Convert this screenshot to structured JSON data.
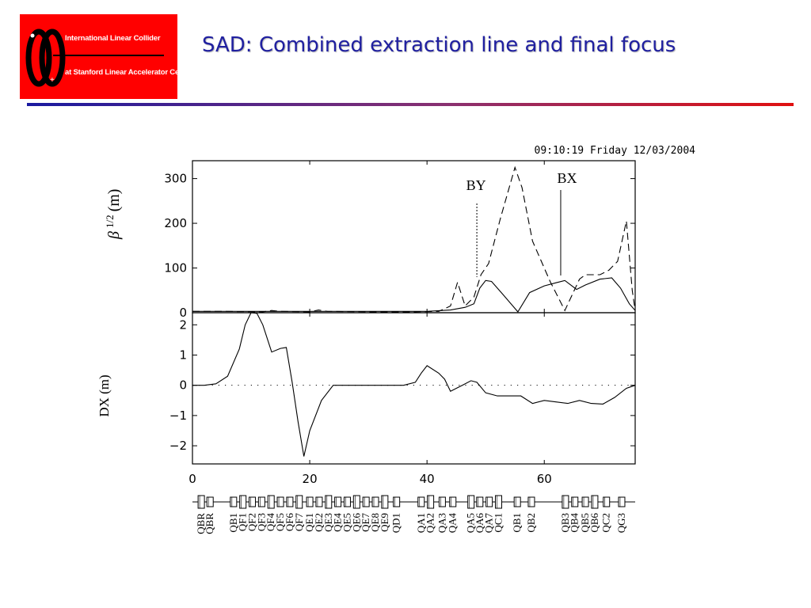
{
  "logo": {
    "line1": "International Linear Collider",
    "line2": "at Stanford Linear Accelerator Center",
    "accent": "#ff0000"
  },
  "slide": {
    "title": "SAD: Combined extraction line and final focus",
    "title_color": "#2020a0"
  },
  "chart_data": {
    "type": "line",
    "timestamp": "09:10:19 Friday 12/03/2004",
    "x": {
      "ticks": [
        0,
        20,
        40,
        60
      ],
      "range": [
        0,
        75.5
      ]
    },
    "panels": [
      {
        "id": "beta",
        "ylabel": "β 1/2 (m)",
        "ylabel_symbol": "β",
        "ylabel_sup": "1/2",
        "ylabel_unit": "(m)",
        "ylim": [
          0,
          340
        ],
        "yticks": [
          0,
          100,
          200,
          300
        ],
        "annotations": [
          {
            "label": "BY",
            "x": 48.5
          },
          {
            "label": "BX",
            "x": 62.8
          }
        ],
        "series": [
          {
            "name": "BY",
            "dash": "dashed",
            "points": [
              [
                0,
                3
              ],
              [
                5,
                3
              ],
              [
                12,
                2
              ],
              [
                13.5,
                5
              ],
              [
                15,
                3
              ],
              [
                20,
                2
              ],
              [
                21.5,
                6
              ],
              [
                23,
                3
              ],
              [
                30,
                2
              ],
              [
                38,
                2
              ],
              [
                42,
                3
              ],
              [
                44,
                15
              ],
              [
                45.2,
                68
              ],
              [
                46.5,
                15
              ],
              [
                48,
                35
              ],
              [
                49.2,
                85
              ],
              [
                50.5,
                110
              ],
              [
                52.5,
                210
              ],
              [
                55,
                325
              ],
              [
                56.2,
                280
              ],
              [
                58,
                160
              ],
              [
                61,
                70
              ],
              [
                63.5,
                5
              ],
              [
                66,
                75
              ],
              [
                67,
                85
              ],
              [
                69.5,
                85
              ],
              [
                71,
                95
              ],
              [
                72.5,
                115
              ],
              [
                74,
                205
              ],
              [
                75,
                50
              ],
              [
                75.5,
                5
              ]
            ]
          },
          {
            "name": "BX",
            "dash": "solid",
            "points": [
              [
                0,
                3
              ],
              [
                30,
                3
              ],
              [
                40,
                3
              ],
              [
                44,
                6
              ],
              [
                46.5,
                12
              ],
              [
                48,
                20
              ],
              [
                49,
                55
              ],
              [
                50,
                72
              ],
              [
                51,
                70
              ],
              [
                53,
                40
              ],
              [
                55.5,
                2
              ],
              [
                57.5,
                45
              ],
              [
                60,
                60
              ],
              [
                62,
                67
              ],
              [
                63.5,
                72
              ],
              [
                65.5,
                52
              ],
              [
                67,
                62
              ],
              [
                69.5,
                75
              ],
              [
                71.5,
                78
              ],
              [
                73,
                55
              ],
              [
                74.5,
                20
              ],
              [
                75.5,
                5
              ]
            ]
          }
        ]
      },
      {
        "id": "dx",
        "ylabel": "DX (m)",
        "ylim": [
          -2.6,
          2.4
        ],
        "yticks": [
          2,
          1,
          0,
          -1,
          -2
        ],
        "series": [
          {
            "name": "DX",
            "dash": "solid",
            "points": [
              [
                0,
                0
              ],
              [
                2,
                0
              ],
              [
                4,
                0.05
              ],
              [
                6,
                0.3
              ],
              [
                8,
                1.2
              ],
              [
                9,
                2.0
              ],
              [
                10,
                2.4
              ],
              [
                11,
                2.38
              ],
              [
                12,
                2.0
              ],
              [
                13.5,
                1.1
              ],
              [
                15,
                1.22
              ],
              [
                16,
                1.25
              ],
              [
                17,
                0.1
              ],
              [
                18,
                -1.2
              ],
              [
                19,
                -2.35
              ],
              [
                20,
                -1.5
              ],
              [
                22,
                -0.5
              ],
              [
                24,
                0
              ],
              [
                36,
                0
              ],
              [
                38,
                0.1
              ],
              [
                39,
                0.4
              ],
              [
                40,
                0.65
              ],
              [
                42,
                0.4
              ],
              [
                43,
                0.2
              ],
              [
                44,
                -0.2
              ],
              [
                46,
                0
              ],
              [
                47.5,
                0.15
              ],
              [
                48.5,
                0.1
              ],
              [
                50,
                -0.25
              ],
              [
                52,
                -0.35
              ],
              [
                56,
                -0.35
              ],
              [
                58,
                -0.6
              ],
              [
                60,
                -0.5
              ],
              [
                62,
                -0.55
              ],
              [
                64,
                -0.6
              ],
              [
                66,
                -0.5
              ],
              [
                68,
                -0.6
              ],
              [
                70,
                -0.62
              ],
              [
                72,
                -0.4
              ],
              [
                74,
                -0.1
              ],
              [
                75.5,
                0
              ]
            ]
          }
        ]
      }
    ],
    "elements": [
      {
        "name": "QBR",
        "x": 1.5
      },
      {
        "name": "QBR",
        "x": 3.0
      },
      {
        "name": "QB1",
        "x": 7.0
      },
      {
        "name": "QF1",
        "x": 8.6
      },
      {
        "name": "QF2",
        "x": 10.2
      },
      {
        "name": "QF3",
        "x": 11.8
      },
      {
        "name": "QF4",
        "x": 13.4
      },
      {
        "name": "QF5",
        "x": 15.0
      },
      {
        "name": "QF6",
        "x": 16.6
      },
      {
        "name": "QF7",
        "x": 18.2
      },
      {
        "name": "QE1",
        "x": 20.0
      },
      {
        "name": "QE2",
        "x": 21.6
      },
      {
        "name": "QE3",
        "x": 23.2
      },
      {
        "name": "QE4",
        "x": 24.8
      },
      {
        "name": "QE5",
        "x": 26.4
      },
      {
        "name": "QE6",
        "x": 28.0
      },
      {
        "name": "QE7",
        "x": 29.6
      },
      {
        "name": "QE8",
        "x": 31.2
      },
      {
        "name": "QE9",
        "x": 32.8
      },
      {
        "name": "QD1",
        "x": 34.8
      },
      {
        "name": "QA1",
        "x": 39.0
      },
      {
        "name": "QA2",
        "x": 40.6
      },
      {
        "name": "QA3",
        "x": 42.6
      },
      {
        "name": "QA4",
        "x": 44.4
      },
      {
        "name": "QA5",
        "x": 47.5
      },
      {
        "name": "QA6",
        "x": 49.0
      },
      {
        "name": "QA7",
        "x": 50.6
      },
      {
        "name": "QC1",
        "x": 52.2
      },
      {
        "name": "QB1",
        "x": 55.4
      },
      {
        "name": "QB2",
        "x": 57.8
      },
      {
        "name": "QB3",
        "x": 63.6
      },
      {
        "name": "QB4",
        "x": 65.2
      },
      {
        "name": "QB5",
        "x": 67.0
      },
      {
        "name": "QB6",
        "x": 68.6
      },
      {
        "name": "QC2",
        "x": 70.6
      },
      {
        "name": "QG3",
        "x": 73.2
      }
    ]
  }
}
